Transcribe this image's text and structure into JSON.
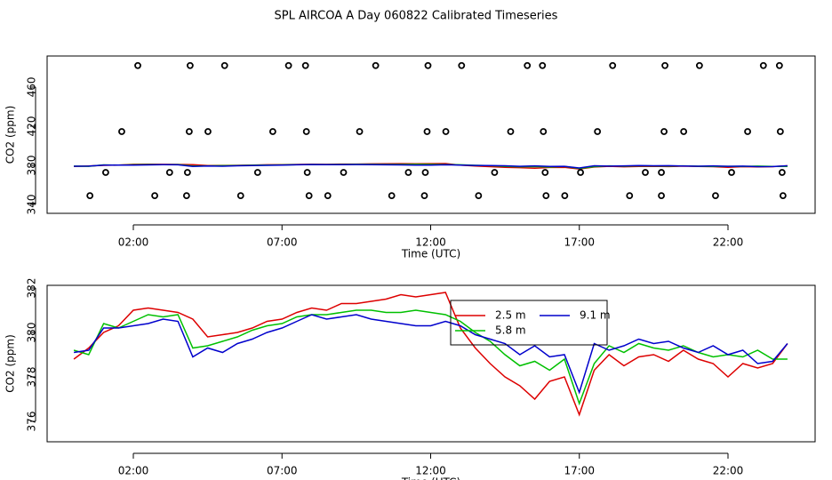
{
  "chart_data": [
    {
      "type": "scatter",
      "title": "SPL AIRCOA A  Day 060822  Calibrated Timeseries",
      "xlabel": "Time (UTC)",
      "ylabel": "CO2 (ppm)",
      "xlim": [
        -0.9,
        24.93
      ],
      "ylim": [
        330.9,
        491.8
      ],
      "xticks": [
        {
          "value": 2,
          "label": "02:00"
        },
        {
          "value": 7,
          "label": "07:00"
        },
        {
          "value": 12,
          "label": "12:00"
        },
        {
          "value": 17,
          "label": "17:00"
        },
        {
          "value": 22,
          "label": "22:00"
        }
      ],
      "yticks": [
        340,
        380,
        420,
        460
      ],
      "color": "#000000",
      "x": [
        2.15,
        3.91,
        5.07,
        7.22,
        7.79,
        10.15,
        11.91,
        13.04,
        15.25,
        15.76,
        18.12,
        19.88,
        21.04,
        23.19,
        23.73,
        1.61,
        3.88,
        4.51,
        6.69,
        7.82,
        9.61,
        11.88,
        12.51,
        14.69,
        15.79,
        17.61,
        19.85,
        20.51,
        22.66,
        23.76,
        1.07,
        3.22,
        3.82,
        6.18,
        7.85,
        9.07,
        11.25,
        11.82,
        14.15,
        15.85,
        17.04,
        19.22,
        19.76,
        22.12,
        23.82,
        0.54,
        2.72,
        3.79,
        5.61,
        7.91,
        8.54,
        10.69,
        11.79,
        13.61,
        15.88,
        16.51,
        18.69,
        19.76,
        21.58,
        23.85
      ],
      "y": [
        482,
        482,
        482,
        482,
        482,
        482,
        482,
        482,
        482,
        482,
        482,
        482,
        482,
        482,
        482,
        414.5,
        414.5,
        414.5,
        414.5,
        414.5,
        414.5,
        414.5,
        414.5,
        414.5,
        414.5,
        414.5,
        414.5,
        414.5,
        414.5,
        414.5,
        372.7,
        372.7,
        372.7,
        372.7,
        372.7,
        372.7,
        372.7,
        372.7,
        372.7,
        372.7,
        372.7,
        372.7,
        372.7,
        372.7,
        372.7,
        349,
        349,
        349,
        349,
        349,
        349,
        349,
        349,
        349,
        349,
        349,
        349,
        349,
        349,
        349
      ]
    },
    {
      "type": "line",
      "xlabel": "Time (UTC)",
      "ylabel": "CO2 (ppm)",
      "xlim": [
        -0.9,
        24.93
      ],
      "ylim": [
        375.08,
        382.12
      ],
      "xticks": [
        {
          "value": 2,
          "label": "02:00"
        },
        {
          "value": 7,
          "label": "07:00"
        },
        {
          "value": 12,
          "label": "12:00"
        },
        {
          "value": 17,
          "label": "17:00"
        },
        {
          "value": 22,
          "label": "22:00"
        }
      ],
      "yticks": [
        376,
        378,
        380,
        382
      ],
      "legend": true,
      "x": [
        0,
        0.5,
        1,
        1.5,
        2,
        2.5,
        3,
        3.5,
        4,
        4.5,
        5,
        5.5,
        6,
        6.5,
        7,
        7.5,
        8,
        8.5,
        9,
        9.5,
        10,
        10.5,
        11,
        11.5,
        12,
        12.5,
        13,
        13.5,
        14,
        14.5,
        15,
        15.5,
        16,
        16.5,
        17,
        17.5,
        18,
        18.5,
        19,
        19.5,
        20,
        20.5,
        21,
        21.5,
        22,
        22.5,
        23,
        23.5,
        24
      ],
      "series": [
        {
          "name": "2.5 m",
          "color": "#dd0000",
          "values": [
            378.8,
            379.3,
            380.0,
            380.3,
            381.0,
            381.1,
            381.0,
            380.9,
            380.6,
            379.8,
            379.9,
            380.0,
            380.2,
            380.5,
            380.6,
            380.9,
            381.1,
            381.0,
            381.3,
            381.3,
            381.4,
            381.5,
            381.7,
            381.6,
            381.7,
            381.8,
            380.2,
            379.3,
            378.6,
            378.0,
            377.6,
            377.0,
            377.8,
            378.0,
            376.3,
            378.3,
            379.0,
            378.5,
            378.9,
            379.0,
            378.7,
            379.2,
            378.8,
            378.6,
            378.0,
            378.6,
            378.4,
            378.6,
            379.5
          ]
        },
        {
          "name": "5.8 m",
          "color": "#00c000",
          "values": [
            379.2,
            379.0,
            380.4,
            380.2,
            380.5,
            380.8,
            380.7,
            380.8,
            379.3,
            379.4,
            379.6,
            379.8,
            380.1,
            380.3,
            380.4,
            380.7,
            380.8,
            380.8,
            380.9,
            381.0,
            381.0,
            380.9,
            380.9,
            381.0,
            380.9,
            380.8,
            380.5,
            380.0,
            379.6,
            379.0,
            378.5,
            378.7,
            378.3,
            378.8,
            376.8,
            378.6,
            379.4,
            379.1,
            379.5,
            379.3,
            379.2,
            379.4,
            379.1,
            378.9,
            379.0,
            378.9,
            379.2,
            378.8,
            378.8
          ]
        },
        {
          "name": "9.1 m",
          "color": "#0000cc",
          "values": [
            379.1,
            379.2,
            380.2,
            380.2,
            380.3,
            380.4,
            380.6,
            380.5,
            378.9,
            379.3,
            379.1,
            379.5,
            379.7,
            380.0,
            380.2,
            380.5,
            380.8,
            380.6,
            380.7,
            380.8,
            380.6,
            380.5,
            380.4,
            380.3,
            380.3,
            380.5,
            380.3,
            379.9,
            379.7,
            379.5,
            379.0,
            379.4,
            378.9,
            379.0,
            377.3,
            379.5,
            379.2,
            379.4,
            379.7,
            379.5,
            379.6,
            379.3,
            379.1,
            379.4,
            379.0,
            379.2,
            378.6,
            378.7,
            379.5
          ]
        }
      ]
    }
  ]
}
